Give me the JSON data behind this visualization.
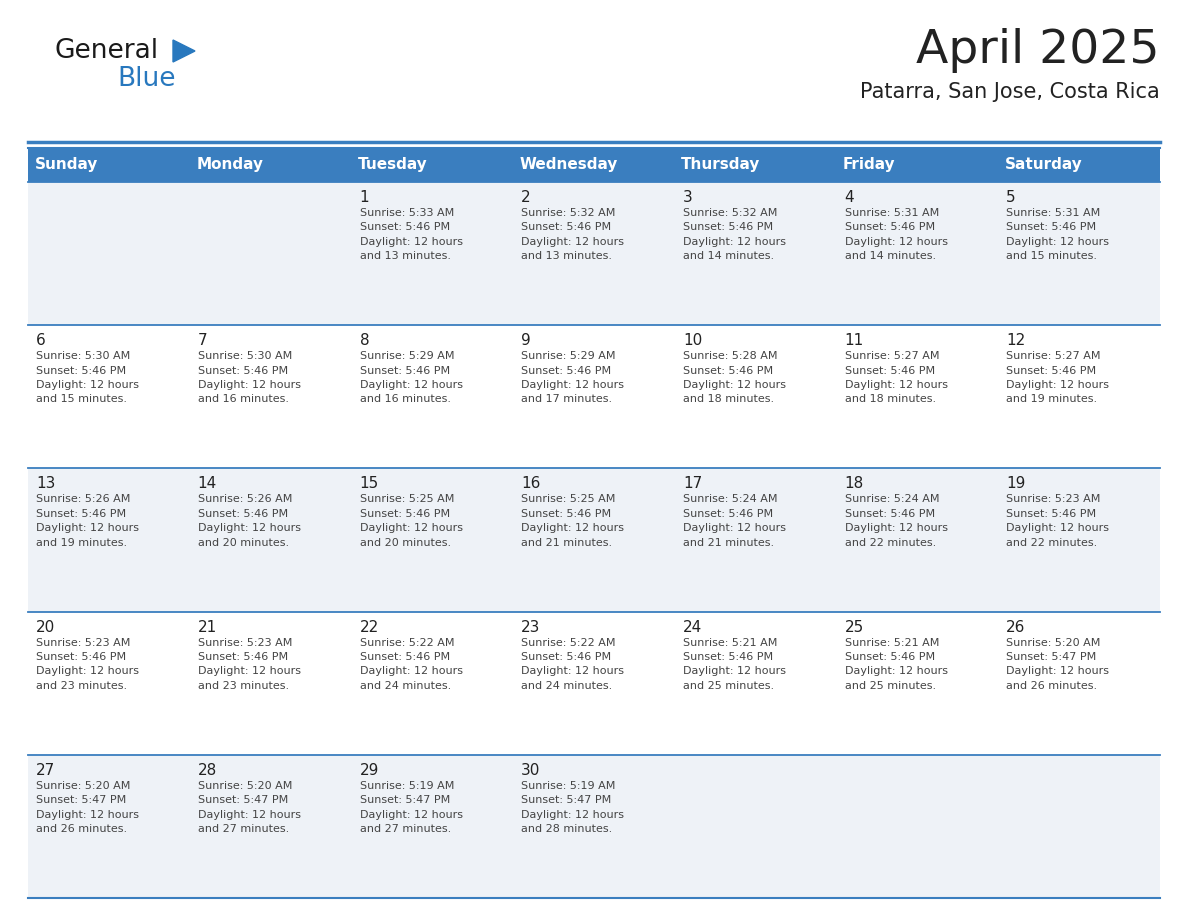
{
  "title": "April 2025",
  "subtitle": "Patarra, San Jose, Costa Rica",
  "header_bg_color": "#3a7ebf",
  "header_text_color": "#ffffff",
  "row_odd_bg": "#eef2f7",
  "row_even_bg": "#ffffff",
  "border_color": "#3a7ebf",
  "day_headers": [
    "Sunday",
    "Monday",
    "Tuesday",
    "Wednesday",
    "Thursday",
    "Friday",
    "Saturday"
  ],
  "calendar_data": [
    [
      {
        "day": "",
        "info": ""
      },
      {
        "day": "",
        "info": ""
      },
      {
        "day": "1",
        "info": "Sunrise: 5:33 AM\nSunset: 5:46 PM\nDaylight: 12 hours\nand 13 minutes."
      },
      {
        "day": "2",
        "info": "Sunrise: 5:32 AM\nSunset: 5:46 PM\nDaylight: 12 hours\nand 13 minutes."
      },
      {
        "day": "3",
        "info": "Sunrise: 5:32 AM\nSunset: 5:46 PM\nDaylight: 12 hours\nand 14 minutes."
      },
      {
        "day": "4",
        "info": "Sunrise: 5:31 AM\nSunset: 5:46 PM\nDaylight: 12 hours\nand 14 minutes."
      },
      {
        "day": "5",
        "info": "Sunrise: 5:31 AM\nSunset: 5:46 PM\nDaylight: 12 hours\nand 15 minutes."
      }
    ],
    [
      {
        "day": "6",
        "info": "Sunrise: 5:30 AM\nSunset: 5:46 PM\nDaylight: 12 hours\nand 15 minutes."
      },
      {
        "day": "7",
        "info": "Sunrise: 5:30 AM\nSunset: 5:46 PM\nDaylight: 12 hours\nand 16 minutes."
      },
      {
        "day": "8",
        "info": "Sunrise: 5:29 AM\nSunset: 5:46 PM\nDaylight: 12 hours\nand 16 minutes."
      },
      {
        "day": "9",
        "info": "Sunrise: 5:29 AM\nSunset: 5:46 PM\nDaylight: 12 hours\nand 17 minutes."
      },
      {
        "day": "10",
        "info": "Sunrise: 5:28 AM\nSunset: 5:46 PM\nDaylight: 12 hours\nand 18 minutes."
      },
      {
        "day": "11",
        "info": "Sunrise: 5:27 AM\nSunset: 5:46 PM\nDaylight: 12 hours\nand 18 minutes."
      },
      {
        "day": "12",
        "info": "Sunrise: 5:27 AM\nSunset: 5:46 PM\nDaylight: 12 hours\nand 19 minutes."
      }
    ],
    [
      {
        "day": "13",
        "info": "Sunrise: 5:26 AM\nSunset: 5:46 PM\nDaylight: 12 hours\nand 19 minutes."
      },
      {
        "day": "14",
        "info": "Sunrise: 5:26 AM\nSunset: 5:46 PM\nDaylight: 12 hours\nand 20 minutes."
      },
      {
        "day": "15",
        "info": "Sunrise: 5:25 AM\nSunset: 5:46 PM\nDaylight: 12 hours\nand 20 minutes."
      },
      {
        "day": "16",
        "info": "Sunrise: 5:25 AM\nSunset: 5:46 PM\nDaylight: 12 hours\nand 21 minutes."
      },
      {
        "day": "17",
        "info": "Sunrise: 5:24 AM\nSunset: 5:46 PM\nDaylight: 12 hours\nand 21 minutes."
      },
      {
        "day": "18",
        "info": "Sunrise: 5:24 AM\nSunset: 5:46 PM\nDaylight: 12 hours\nand 22 minutes."
      },
      {
        "day": "19",
        "info": "Sunrise: 5:23 AM\nSunset: 5:46 PM\nDaylight: 12 hours\nand 22 minutes."
      }
    ],
    [
      {
        "day": "20",
        "info": "Sunrise: 5:23 AM\nSunset: 5:46 PM\nDaylight: 12 hours\nand 23 minutes."
      },
      {
        "day": "21",
        "info": "Sunrise: 5:23 AM\nSunset: 5:46 PM\nDaylight: 12 hours\nand 23 minutes."
      },
      {
        "day": "22",
        "info": "Sunrise: 5:22 AM\nSunset: 5:46 PM\nDaylight: 12 hours\nand 24 minutes."
      },
      {
        "day": "23",
        "info": "Sunrise: 5:22 AM\nSunset: 5:46 PM\nDaylight: 12 hours\nand 24 minutes."
      },
      {
        "day": "24",
        "info": "Sunrise: 5:21 AM\nSunset: 5:46 PM\nDaylight: 12 hours\nand 25 minutes."
      },
      {
        "day": "25",
        "info": "Sunrise: 5:21 AM\nSunset: 5:46 PM\nDaylight: 12 hours\nand 25 minutes."
      },
      {
        "day": "26",
        "info": "Sunrise: 5:20 AM\nSunset: 5:47 PM\nDaylight: 12 hours\nand 26 minutes."
      }
    ],
    [
      {
        "day": "27",
        "info": "Sunrise: 5:20 AM\nSunset: 5:47 PM\nDaylight: 12 hours\nand 26 minutes."
      },
      {
        "day": "28",
        "info": "Sunrise: 5:20 AM\nSunset: 5:47 PM\nDaylight: 12 hours\nand 27 minutes."
      },
      {
        "day": "29",
        "info": "Sunrise: 5:19 AM\nSunset: 5:47 PM\nDaylight: 12 hours\nand 27 minutes."
      },
      {
        "day": "30",
        "info": "Sunrise: 5:19 AM\nSunset: 5:47 PM\nDaylight: 12 hours\nand 28 minutes."
      },
      {
        "day": "",
        "info": ""
      },
      {
        "day": "",
        "info": ""
      },
      {
        "day": "",
        "info": ""
      }
    ]
  ],
  "logo_text_general": "General",
  "logo_text_blue": "Blue",
  "logo_color_general": "#1a1a1a",
  "logo_color_blue": "#2878be",
  "logo_triangle_color": "#2878be",
  "cell_text_color": "#333333",
  "day_number_color": "#222222",
  "info_text_color": "#444444",
  "info_fontsize": 8.0,
  "day_number_fontsize": 11,
  "header_fontsize": 11,
  "title_fontsize": 34,
  "subtitle_fontsize": 15
}
